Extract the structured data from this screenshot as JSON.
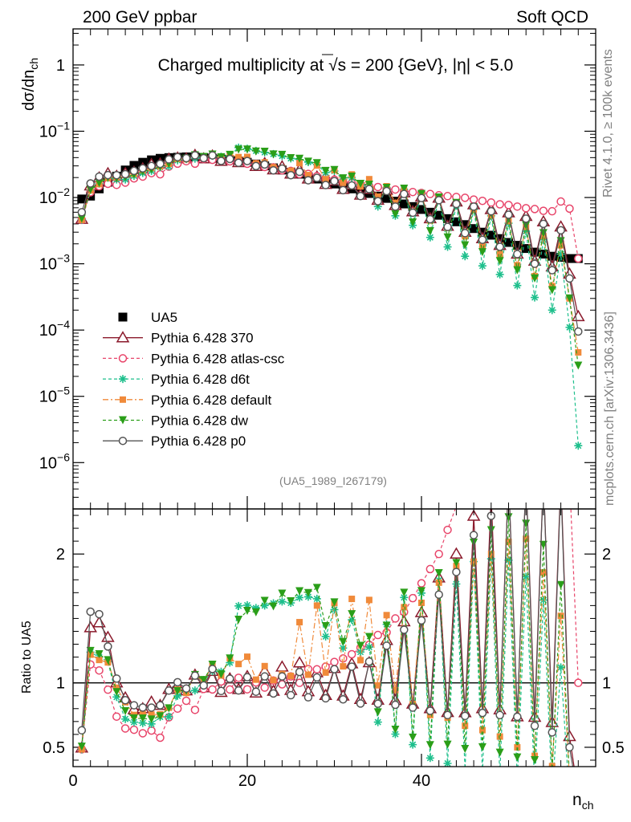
{
  "header": {
    "left": "200 GeV ppbar",
    "right": "Soft QCD",
    "title_pre": "Charged multiplicity at ",
    "title_sqrt": "√s",
    "title_post": " = 200 {GeV}, |η| < 5.0",
    "side_top": "Rivet 4.1.0, ≥ 100k events",
    "side_bottom": "mcplots.cern.ch [arXiv:1306.3436]",
    "analysis": "(UA5_1989_I267179)"
  },
  "chart_data": [
    {
      "type": "scatter",
      "title": "Charged multiplicity at √s = 200 {GeV}, |η| < 5.0",
      "ylabel": "dσ/dn_ch",
      "yscale": "log",
      "ylim": [
        2e-07,
        3.5
      ],
      "xlim": [
        0,
        60
      ],
      "y_ticks": [
        {
          "v": 1,
          "base": "1",
          "exp": ""
        },
        {
          "v": 0.1,
          "base": "10",
          "exp": "−1"
        },
        {
          "v": 0.01,
          "base": "10",
          "exp": "−2"
        },
        {
          "v": 0.001,
          "base": "10",
          "exp": "−3"
        },
        {
          "v": 0.0001,
          "base": "10",
          "exp": "−4"
        },
        {
          "v": 1e-05,
          "base": "10",
          "exp": "−5"
        },
        {
          "v": 1e-06,
          "base": "10",
          "exp": "−6"
        }
      ],
      "ylabel_main": "dσ/dn",
      "ylabel_sub": "ch",
      "legend": [
        "UA5",
        "Pythia 6.428 370",
        "Pythia 6.428 atlas-csc",
        "Pythia 6.428 d6t",
        "Pythia 6.428 default",
        "Pythia 6.428 dw",
        "Pythia 6.428 p0"
      ],
      "data": {
        "x": [
          1,
          2,
          3,
          4,
          5,
          6,
          7,
          8,
          9,
          10,
          11,
          12,
          13,
          14,
          15,
          16,
          17,
          18,
          19,
          20,
          21,
          22,
          23,
          24,
          25,
          26,
          27,
          28,
          29,
          30,
          31,
          32,
          33,
          34,
          35,
          36,
          37,
          38,
          39,
          40,
          41,
          42,
          43,
          44,
          45,
          46,
          47,
          48,
          49,
          50,
          51,
          52,
          53,
          54,
          55,
          56,
          57,
          58
        ],
        "ua5": [
          0.0095,
          0.0105,
          0.0135,
          0.017,
          0.021,
          0.026,
          0.0305,
          0.034,
          0.037,
          0.039,
          0.04,
          0.0405,
          0.041,
          0.041,
          0.04,
          0.039,
          0.038,
          0.037,
          0.0355,
          0.034,
          0.032,
          0.03,
          0.028,
          0.026,
          0.024,
          0.0225,
          0.0205,
          0.019,
          0.0175,
          0.016,
          0.0148,
          0.0135,
          0.0125,
          0.0115,
          0.0105,
          0.0097,
          0.0088,
          0.008,
          0.0073,
          0.0066,
          0.006,
          0.0054,
          0.0048,
          0.0043,
          0.0039,
          0.0034,
          0.003,
          0.0027,
          0.0024,
          0.0021,
          0.0019,
          0.0017,
          0.0015,
          0.0014,
          0.0013,
          0.00125,
          0.0012,
          0.0012
        ],
        "p370": [
          0.0047,
          0.015,
          0.0198,
          0.023,
          0.021,
          0.023,
          0.0242,
          0.0272,
          0.0315,
          0.0322,
          0.038,
          0.0395,
          0.0385,
          0.0435,
          0.0385,
          0.0425,
          0.0352,
          0.0382,
          0.0337,
          0.0357,
          0.0295,
          0.0327,
          0.0262,
          0.0292,
          0.0226,
          0.026,
          0.0191,
          0.0205,
          0.0158,
          0.0178,
          0.0133,
          0.0155,
          0.0109,
          0.0133,
          0.0091,
          0.0129,
          0.0076,
          0.0118,
          0.0061,
          0.0102,
          0.0048,
          0.0098,
          0.0037,
          0.0086,
          0.003,
          0.0078,
          0.0024,
          0.0066,
          0.0019,
          0.0059,
          0.0014,
          0.0052,
          0.0011,
          0.0043,
          0.0009,
          0.0036,
          0.0007,
          0.00016
        ],
        "atlas": [
          0.0046,
          0.012,
          0.0148,
          0.0161,
          0.0155,
          0.0168,
          0.0194,
          0.0207,
          0.0233,
          0.0224,
          0.0293,
          0.0324,
          0.0353,
          0.0324,
          0.0381,
          0.037,
          0.0384,
          0.0351,
          0.0369,
          0.0323,
          0.0321,
          0.0289,
          0.0285,
          0.0257,
          0.0252,
          0.0225,
          0.0227,
          0.021,
          0.0197,
          0.0186,
          0.0176,
          0.0165,
          0.0159,
          0.0149,
          0.0144,
          0.0135,
          0.0132,
          0.0124,
          0.0121,
          0.0117,
          0.0113,
          0.0108,
          0.0105,
          0.0102,
          0.0099,
          0.0093,
          0.0089,
          0.0084,
          0.0079,
          0.0077,
          0.0073,
          0.0069,
          0.0067,
          0.0063,
          0.0062,
          0.0087,
          0.0068,
          0.0012
        ],
        "d6t": [
          0.0046,
          0.013,
          0.0162,
          0.0198,
          0.0187,
          0.0187,
          0.0212,
          0.0234,
          0.0252,
          0.0287,
          0.0295,
          0.0364,
          0.038,
          0.0386,
          0.0409,
          0.0425,
          0.0413,
          0.0428,
          0.0567,
          0.0545,
          0.0506,
          0.048,
          0.0453,
          0.0424,
          0.0389,
          0.0374,
          0.0342,
          0.0314,
          0.0238,
          0.0251,
          0.0188,
          0.0201,
          0.0155,
          0.0147,
          0.0073,
          0.0141,
          0.0053,
          0.0133,
          0.0038,
          0.0112,
          0.0025,
          0.0097,
          0.0018,
          0.0076,
          0.0013,
          0.0066,
          0.00093,
          0.0053,
          0.00069,
          0.0041,
          0.00047,
          0.0031,
          0.00031,
          0.0023,
          0.0002,
          0.0014,
          0.00011,
          1.8e-06
        ],
        "def": [
          0.0046,
          0.0128,
          0.0159,
          0.0197,
          0.0202,
          0.0221,
          0.0229,
          0.0258,
          0.0279,
          0.0295,
          0.0323,
          0.0384,
          0.0378,
          0.0436,
          0.0403,
          0.0447,
          0.0402,
          0.0441,
          0.0407,
          0.0409,
          0.0328,
          0.0339,
          0.0286,
          0.0278,
          0.0253,
          0.0331,
          0.0218,
          0.0304,
          0.0189,
          0.0259,
          0.0167,
          0.0223,
          0.0147,
          0.0189,
          0.0103,
          0.0148,
          0.0083,
          0.0127,
          0.0061,
          0.0107,
          0.0045,
          0.0096,
          0.0035,
          0.0082,
          0.0026,
          0.0066,
          0.0019,
          0.0054,
          0.0014,
          0.0044,
          0.00095,
          0.0036,
          0.00065,
          0.0026,
          0.00046,
          0.0019,
          0.0003,
          4.6e-05
        ],
        "dw": [
          0.0048,
          0.0131,
          0.0165,
          0.02,
          0.0195,
          0.0203,
          0.0221,
          0.0246,
          0.0265,
          0.0289,
          0.0321,
          0.0379,
          0.0385,
          0.0435,
          0.0409,
          0.0445,
          0.0405,
          0.044,
          0.0529,
          0.053,
          0.0495,
          0.0491,
          0.0446,
          0.044,
          0.0392,
          0.0385,
          0.0348,
          0.033,
          0.0252,
          0.026,
          0.0195,
          0.0207,
          0.0161,
          0.0156,
          0.0081,
          0.014,
          0.0056,
          0.0136,
          0.0042,
          0.0113,
          0.0031,
          0.01,
          0.0025,
          0.0083,
          0.0019,
          0.0071,
          0.0015,
          0.0059,
          0.0011,
          0.0048,
          0.0008,
          0.0038,
          0.0006,
          0.0029,
          0.0004,
          0.0022,
          0.0003,
          2.9e-05
        ],
        "p0": [
          0.006,
          0.0163,
          0.0207,
          0.0218,
          0.0217,
          0.0225,
          0.0252,
          0.0275,
          0.0299,
          0.0322,
          0.0376,
          0.0407,
          0.0392,
          0.0433,
          0.0392,
          0.0432,
          0.0356,
          0.0382,
          0.0334,
          0.0355,
          0.0298,
          0.0315,
          0.0257,
          0.0273,
          0.0217,
          0.0244,
          0.0182,
          0.0198,
          0.0154,
          0.0177,
          0.0129,
          0.0152,
          0.0105,
          0.0134,
          0.0088,
          0.0125,
          0.0073,
          0.0113,
          0.0059,
          0.0098,
          0.0047,
          0.0091,
          0.0036,
          0.008,
          0.0029,
          0.0073,
          0.0023,
          0.0062,
          0.0018,
          0.0055,
          0.0014,
          0.0048,
          0.001,
          0.004,
          0.0008,
          0.0032,
          0.0006,
          9.5e-05
        ]
      },
      "ratio": {
        "ylabel": "Ratio to UA5",
        "ylim": [
          0.35,
          2.35
        ],
        "ticks": [
          {
            "v": 2,
            "label": "2"
          },
          {
            "v": 1,
            "label": "1"
          },
          {
            "v": 0.5,
            "label": "0.5"
          }
        ],
        "reference": 1
      },
      "x_ticks": [
        {
          "v": 0,
          "label": "0"
        },
        {
          "v": 20,
          "label": "20"
        },
        {
          "v": 40,
          "label": "40"
        }
      ],
      "xlabel_main": "n",
      "xlabel_sub": "ch"
    }
  ],
  "colors": {
    "ua5": "#000000",
    "p370": "#8b1a2c",
    "atlas": "#e8456a",
    "d6t": "#1dbf8c",
    "def": "#f08a3a",
    "dw": "#2a9e18",
    "p0": "#555555"
  }
}
